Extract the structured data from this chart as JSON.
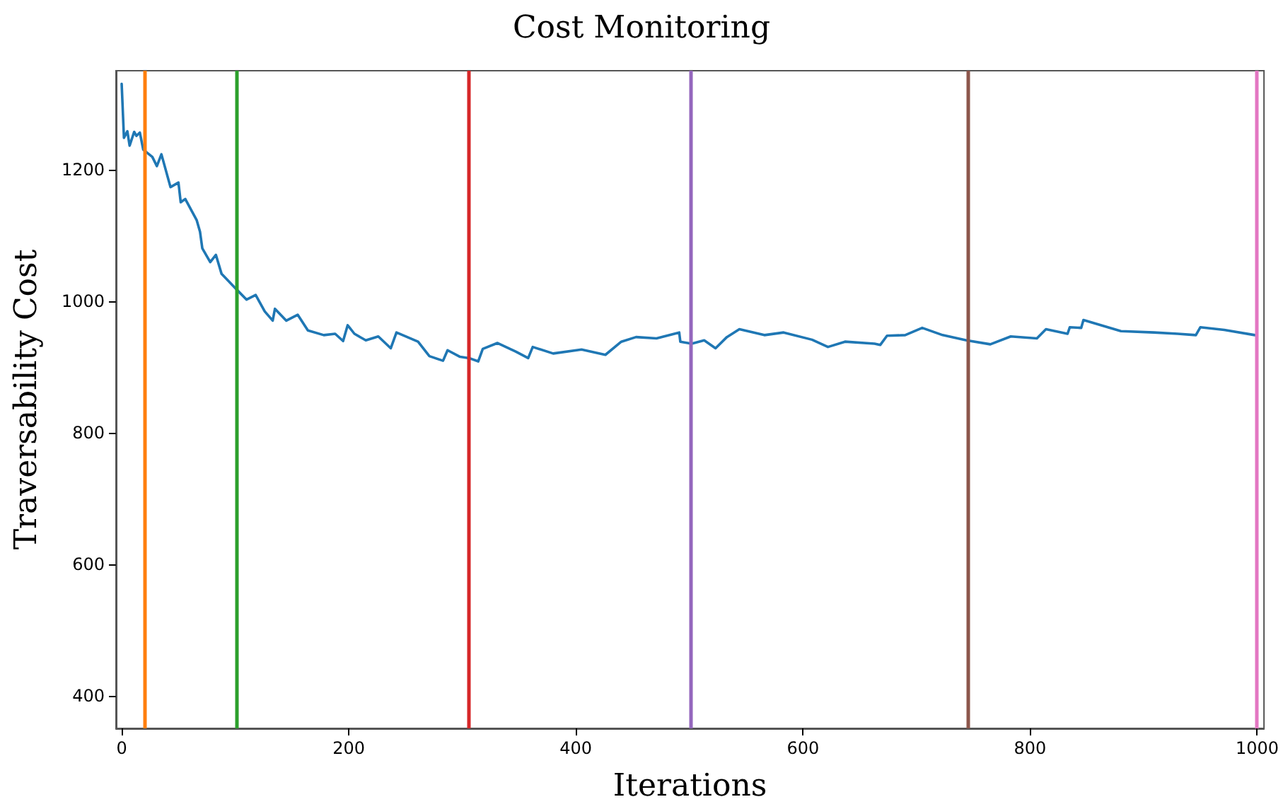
{
  "chart_data": {
    "type": "line",
    "title": "Cost Monitoring",
    "xlabel": "Iterations",
    "ylabel": "Traversability Cost",
    "xlim": [
      -5,
      1006
    ],
    "xticks": [
      0,
      200,
      400,
      600,
      800,
      1000
    ],
    "ylim": [
      350,
      1350
    ],
    "yticks": [
      400,
      600,
      800,
      1000,
      1200
    ],
    "grid": false,
    "marker": "none",
    "line_style": "solid",
    "series": [
      {
        "color": "#1f77b4",
        "x": [
          0,
          2,
          5,
          7,
          11,
          13,
          16,
          19,
          27,
          31,
          35,
          43,
          50,
          52,
          56,
          66,
          69,
          71,
          78,
          83,
          88,
          98,
          102,
          110,
          118,
          126,
          133,
          135,
          145,
          155,
          164,
          178,
          188,
          195,
          199,
          205,
          215,
          226,
          237,
          242,
          261,
          271,
          283,
          287,
          298,
          306,
          314,
          318,
          331,
          347,
          358,
          362,
          380,
          405,
          426,
          440,
          453,
          471,
          491,
          492,
          502,
          513,
          523,
          533,
          544,
          566,
          583,
          608,
          622,
          637,
          663,
          668,
          674,
          690,
          705,
          723,
          744,
          765,
          783,
          806,
          814,
          833,
          835,
          845,
          847,
          880,
          909,
          930,
          946,
          950,
          971,
          998
        ],
        "values": [
          1330,
          1248,
          1258,
          1236,
          1257,
          1251,
          1256,
          1230,
          1219,
          1205,
          1223,
          1173,
          1180,
          1150,
          1155,
          1123,
          1105,
          1080,
          1059,
          1070,
          1041,
          1023,
          1016,
          1002,
          1009,
          984,
          970,
          988,
          970,
          979,
          955,
          948,
          950,
          939,
          963,
          950,
          940,
          946,
          928,
          952,
          938,
          916,
          909,
          925,
          915,
          913,
          908,
          927,
          936,
          923,
          913,
          930,
          920,
          926,
          918,
          938,
          945,
          943,
          952,
          938,
          935,
          940,
          928,
          945,
          957,
          948,
          952,
          941,
          930,
          938,
          935,
          933,
          947,
          948,
          959,
          948,
          940,
          934,
          946,
          943,
          957,
          950,
          960,
          959,
          971,
          954,
          952,
          950,
          948,
          960,
          956,
          948
        ]
      }
    ],
    "ref_lines": [
      {
        "axis": "x",
        "value": 20,
        "color": "#ff7f0e"
      },
      {
        "axis": "x",
        "value": 101,
        "color": "#2ca02c"
      },
      {
        "axis": "x",
        "value": 305,
        "color": "#d62728"
      },
      {
        "axis": "x",
        "value": 501,
        "color": "#9467bd"
      },
      {
        "axis": "x",
        "value": 745,
        "color": "#8c564b"
      },
      {
        "axis": "x",
        "value": 1000,
        "color": "#e377c2"
      }
    ]
  }
}
